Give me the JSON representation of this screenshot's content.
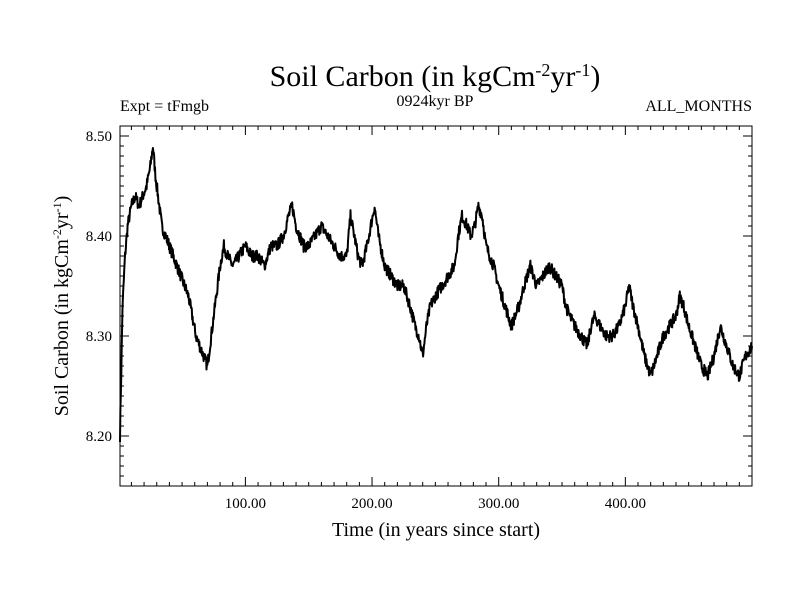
{
  "chart_data": {
    "type": "line",
    "title": {
      "main": "Soil Carbon (in kgCm",
      "exp1": "-2",
      "mid": "yr",
      "exp2": "-1",
      "end": ")"
    },
    "subtitle_left": "Expt = tFmgb",
    "subtitle_center": "0924kyr BP",
    "subtitle_right": "ALL_MONTHS",
    "xlabel": "Time (in years since start)",
    "ylabel": {
      "main": "Soil Carbon (in kgCm",
      "exp1": "-2",
      "mid": "yr",
      "exp2": "-1",
      "end": ")"
    },
    "xlim": [
      1,
      500
    ],
    "ylim": [
      8.15,
      8.51
    ],
    "xticks": [
      100,
      200,
      300,
      400
    ],
    "xtick_labels": [
      "100.00",
      "200.00",
      "300.00",
      "400.00"
    ],
    "yticks": [
      8.2,
      8.3,
      8.4,
      8.5
    ],
    "ytick_labels": [
      "8.20",
      "8.30",
      "8.40",
      "8.50"
    ],
    "series": [
      {
        "name": "Soil Carbon",
        "color": "#000000",
        "x": [
          1,
          3,
          5,
          7,
          10,
          13,
          16,
          19,
          22,
          25,
          27,
          29,
          31,
          34,
          37,
          40,
          43,
          46,
          49,
          52,
          55,
          58,
          61,
          64,
          67,
          70,
          72,
          74,
          77,
          80,
          83,
          86,
          90,
          95,
          100,
          105,
          110,
          115,
          120,
          125,
          130,
          134,
          137,
          140,
          143,
          146,
          150,
          155,
          160,
          165,
          170,
          175,
          180,
          183,
          186,
          189,
          192,
          196,
          199,
          202,
          205,
          210,
          215,
          220,
          225,
          230,
          234,
          237,
          240,
          243,
          246,
          250,
          255,
          260,
          265,
          268,
          271,
          275,
          278,
          281,
          284,
          287,
          290,
          293,
          296,
          300,
          305,
          310,
          313,
          316,
          320,
          325,
          330,
          335,
          340,
          345,
          350,
          353,
          356,
          360,
          365,
          370,
          373,
          376,
          380,
          385,
          390,
          395,
          400,
          403,
          406,
          410,
          415,
          420,
          425,
          430,
          435,
          440,
          443,
          446,
          450,
          455,
          460,
          465,
          470,
          475,
          480,
          485,
          490,
          495,
          500
        ],
        "y": [
          8.2,
          8.33,
          8.38,
          8.41,
          8.43,
          8.44,
          8.43,
          8.44,
          8.45,
          8.47,
          8.49,
          8.46,
          8.44,
          8.41,
          8.4,
          8.39,
          8.38,
          8.37,
          8.36,
          8.35,
          8.34,
          8.32,
          8.3,
          8.29,
          8.28,
          8.27,
          8.29,
          8.31,
          8.34,
          8.37,
          8.39,
          8.38,
          8.37,
          8.38,
          8.39,
          8.38,
          8.38,
          8.37,
          8.39,
          8.39,
          8.4,
          8.42,
          8.43,
          8.41,
          8.4,
          8.39,
          8.39,
          8.4,
          8.41,
          8.4,
          8.39,
          8.38,
          8.38,
          8.42,
          8.4,
          8.38,
          8.37,
          8.39,
          8.41,
          8.43,
          8.4,
          8.37,
          8.36,
          8.35,
          8.35,
          8.33,
          8.31,
          8.3,
          8.28,
          8.31,
          8.33,
          8.34,
          8.35,
          8.36,
          8.37,
          8.4,
          8.42,
          8.41,
          8.4,
          8.41,
          8.43,
          8.42,
          8.39,
          8.38,
          8.37,
          8.35,
          8.33,
          8.31,
          8.32,
          8.33,
          8.35,
          8.37,
          8.35,
          8.36,
          8.37,
          8.36,
          8.35,
          8.33,
          8.32,
          8.31,
          8.3,
          8.29,
          8.31,
          8.32,
          8.31,
          8.3,
          8.3,
          8.31,
          8.33,
          8.35,
          8.33,
          8.31,
          8.28,
          8.26,
          8.28,
          8.3,
          8.31,
          8.32,
          8.34,
          8.33,
          8.31,
          8.29,
          8.27,
          8.26,
          8.28,
          8.31,
          8.29,
          8.27,
          8.26,
          8.28,
          8.29
        ]
      }
    ]
  }
}
